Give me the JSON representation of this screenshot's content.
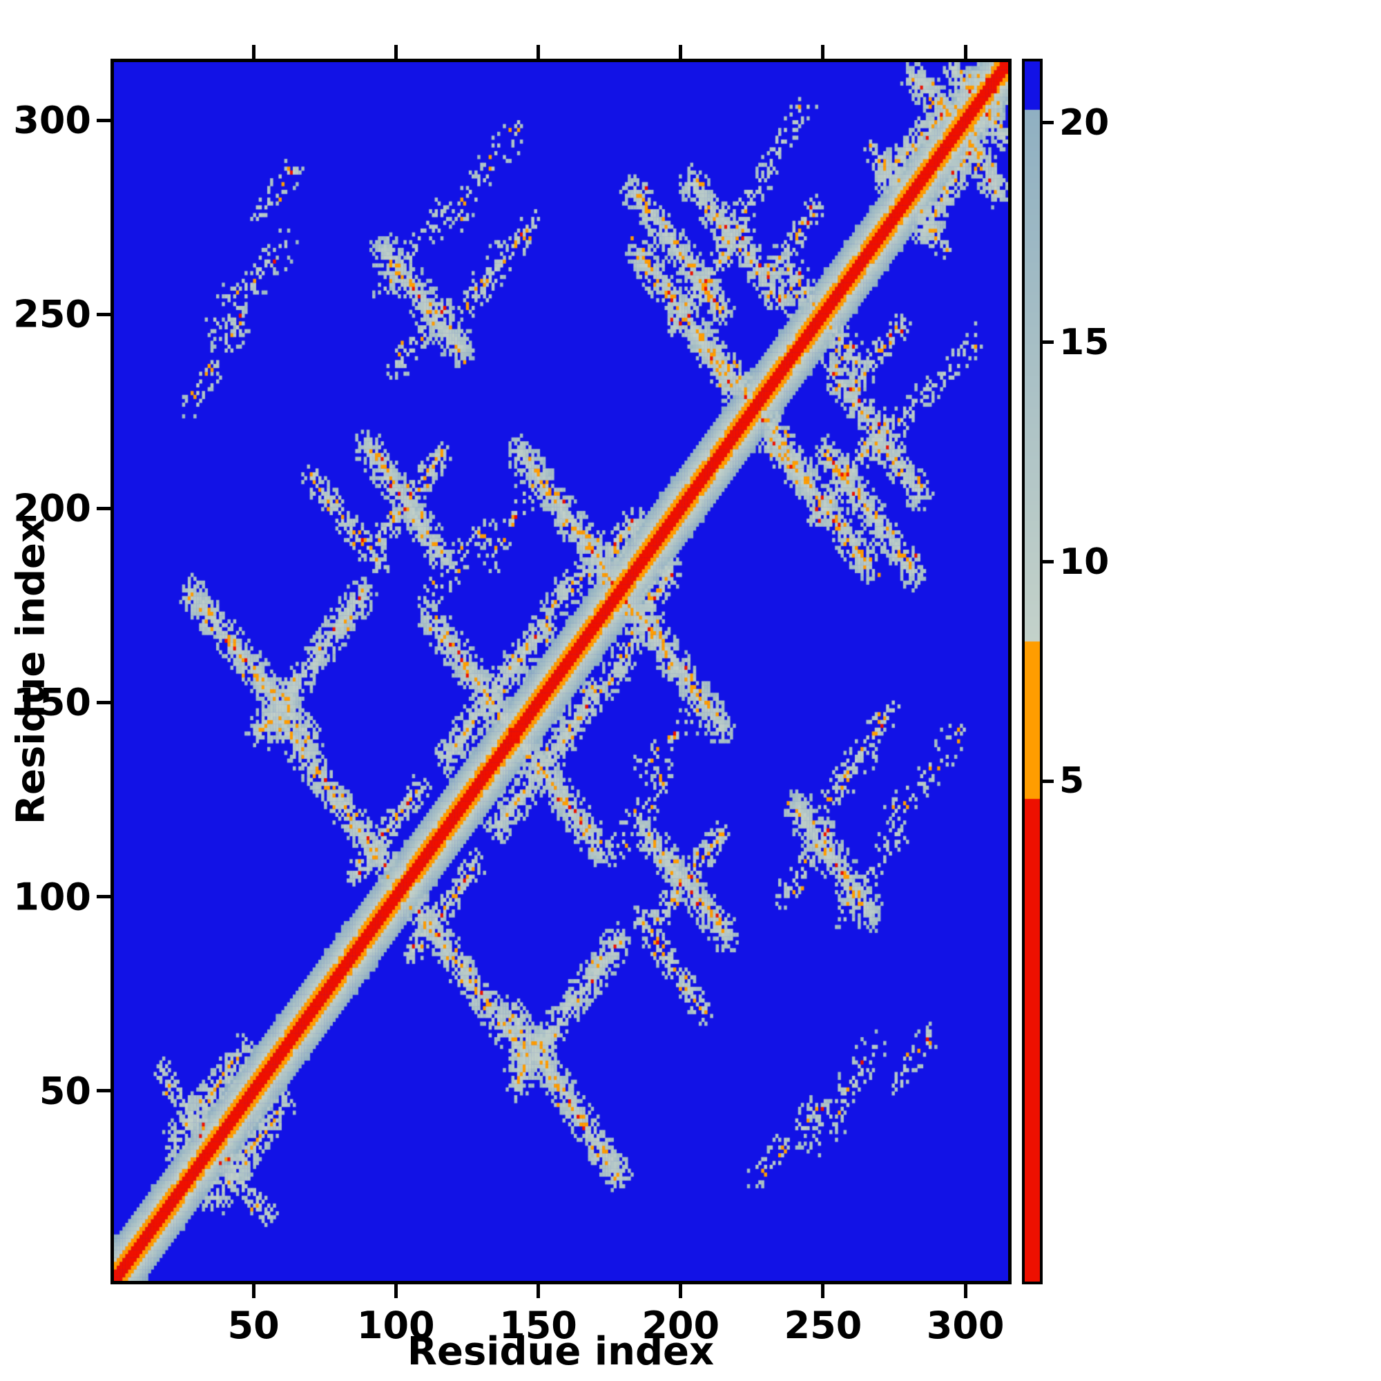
{
  "chart_data": {
    "type": "heatmap",
    "title": "",
    "xlabel": "Residue index",
    "ylabel": "Residue index",
    "x_range": [
      1,
      315
    ],
    "y_range": [
      1,
      315
    ],
    "x_ticks": [
      50,
      100,
      150,
      200,
      250,
      300
    ],
    "y_ticks": [
      50,
      100,
      150,
      200,
      250,
      300
    ],
    "grid": false,
    "legend": "colorbar-right",
    "colorbar": {
      "ticks": [
        5,
        10,
        15,
        20
      ],
      "vmax": 21.4,
      "span": 27.8,
      "position": "right"
    },
    "colormap": {
      "red_max": 4.6,
      "orange_max": 8.2,
      "blue_min": 20.3,
      "red": "#ee1000",
      "orange": "#ff9d00",
      "gray_low": "#c3d1c9",
      "gray_high": "#90b0c2",
      "blue": "#1212e6"
    },
    "matrix_model": {
      "symmetric": true,
      "description": "Residue-residue distance map: red core along diagonal (closest), speckled orange flecks, smooth gray band for |i-j| up to ~11, gray/orange antiparallel and parallel contact stripes off-diagonal, deep blue elsewhere (distant pairs).",
      "diagonal": {
        "gradient": 1.9,
        "noise": 1.6
      },
      "segments_format": [
        "x1",
        "y1",
        "x2",
        "y2",
        "half_width",
        "density"
      ],
      "segments": [
        [
          22,
          36,
          46,
          60,
          5,
          0.6
        ],
        [
          18,
          54,
          34,
          38,
          4,
          0.5
        ],
        [
          28,
          178,
          70,
          140,
          5,
          0.8
        ],
        [
          52,
          142,
          88,
          178,
          5,
          0.75
        ],
        [
          58,
          146,
          96,
          108,
          5,
          0.8
        ],
        [
          86,
          106,
          108,
          128,
          4,
          0.6
        ],
        [
          70,
          208,
          94,
          186,
          4,
          0.55
        ],
        [
          36,
          248,
          60,
          268,
          6,
          0.25
        ],
        [
          52,
          276,
          64,
          288,
          4,
          0.2
        ],
        [
          96,
          258,
          116,
          276,
          5,
          0.25
        ],
        [
          124,
          252,
          136,
          266,
          4,
          0.25
        ],
        [
          96,
          266,
          122,
          242,
          6,
          0.75
        ],
        [
          100,
          236,
          116,
          252,
          4,
          0.45
        ],
        [
          112,
          172,
          140,
          144,
          5,
          0.8
        ],
        [
          118,
          136,
          152,
          170,
          5,
          0.75
        ],
        [
          156,
          176,
          184,
          196,
          5,
          0.6
        ],
        [
          144,
          214,
          178,
          180,
          5,
          0.8
        ],
        [
          90,
          216,
          116,
          188,
          5,
          0.75
        ],
        [
          94,
          192,
          116,
          214,
          4,
          0.55
        ],
        [
          134,
          188,
          150,
          210,
          5,
          0.2
        ],
        [
          112,
          178,
          130,
          194,
          5,
          0.3
        ],
        [
          184,
          282,
          214,
          252,
          5,
          0.75
        ],
        [
          198,
          248,
          222,
          272,
          4,
          0.6
        ],
        [
          204,
          284,
          236,
          254,
          5,
          0.7
        ],
        [
          238,
          262,
          250,
          250,
          5,
          0.7
        ],
        [
          208,
          244,
          227,
          227,
          5,
          0.7
        ],
        [
          232,
          262,
          248,
          278,
          4,
          0.45
        ],
        [
          186,
          266,
          218,
          232,
          5,
          0.75
        ],
        [
          128,
          254,
          148,
          274,
          4,
          0.35
        ],
        [
          122,
          276,
          142,
          298,
          5,
          0.2
        ],
        [
          28,
          228,
          44,
          248,
          5,
          0.25
        ],
        [
          272,
          286,
          306,
          312,
          5,
          0.7
        ],
        [
          282,
          312,
          299,
          299,
          5,
          0.75
        ],
        [
          296,
          314,
          305,
          305,
          4,
          0.7
        ],
        [
          268,
          292,
          280,
          280,
          4,
          0.6
        ],
        [
          294,
          300,
          312,
          314,
          4,
          0.6
        ],
        [
          214,
          268,
          230,
          286,
          4,
          0.4
        ],
        [
          230,
          288,
          244,
          304,
          4,
          0.2
        ]
      ]
    }
  }
}
